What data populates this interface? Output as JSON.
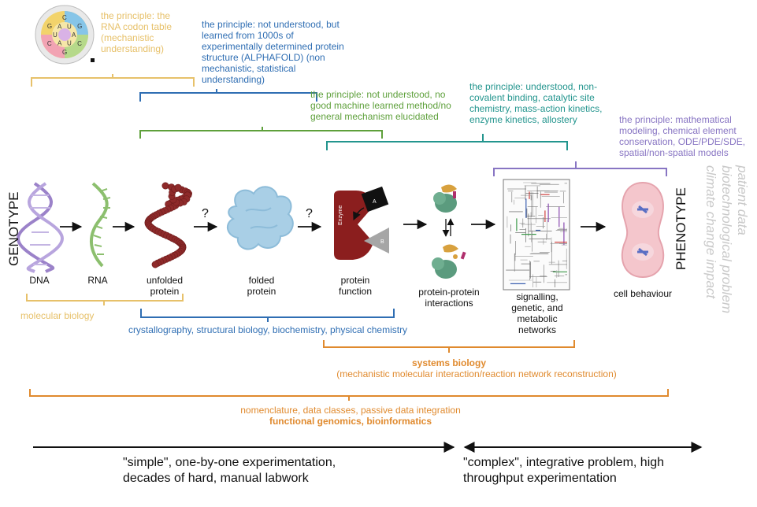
{
  "principles": {
    "codon": "the principle: the RNA codon table (mechanistic understanding)",
    "structure": "the principle: not understood, but learned from 1000s of experimentally determined protein structure (ALPHAFOLD) (non mechanistic, statistical understanding)",
    "function": "the principle: not understood, no good machine learned method/no general mechanism elucidated",
    "interactions": "the principle:  understood, non-covalent binding, catalytic site chemistry, mass-action kinetics, enzyme kinetics, allostery",
    "networks": "the principle:  mathematical modeling, chemical element conservation, ODE/PDE/SDE, spatial/non-spatial models"
  },
  "codon_wheel_letters": [
    "C",
    "U",
    "G",
    "A",
    "C",
    "U",
    "G",
    "A",
    "C",
    "U",
    "G",
    "A"
  ],
  "stages": {
    "dna": "DNA",
    "rna": "RNA",
    "unfolded": "unfolded protein",
    "folded": "folded protein",
    "function": "protein function",
    "ppi": "protein-protein interactions",
    "networks": "signalling, genetic, and metabolic networks",
    "cell": "cell behaviour"
  },
  "question_mark": "?",
  "enzyme_label": "Enzyme",
  "substrate_a": "A",
  "substrate_b": "B",
  "genotype": "GENOTYPE",
  "phenotype": "PHENOTYPE",
  "right_vertical": [
    "patient data",
    "biotechnological problem",
    "climate change impact"
  ],
  "fields": {
    "molecular_biology": "molecular biology",
    "structural": "crystallography, structural biology, biochemistry, physical chemistry",
    "systems_title": "systems biology",
    "systems_sub": "(mechanistic molecular interaction/reaction network reconstruction)",
    "genomics_sub": "nomenclature, data classes, passive data integration",
    "genomics_title": "functional genomics, bioinformatics"
  },
  "bottom": {
    "left": "\"simple\", one-by-one experimentation, decades of hard, manual labwork",
    "right": "\"complex\", integrative problem, high throughput experimentation"
  },
  "colors": {
    "gold": "#e7c16a",
    "blue": "#2f6eb3",
    "green": "#5ea03b",
    "teal": "#23958e",
    "purple": "#8875c3",
    "orange": "#e08a2e",
    "dna": "#9b82c9",
    "rna": "#8cbf6e",
    "protein": "#8e2a2a",
    "folded": "#a9cfe6",
    "enzyme": "#8b1e1e",
    "ppi_green": "#5b9b7e"
  }
}
